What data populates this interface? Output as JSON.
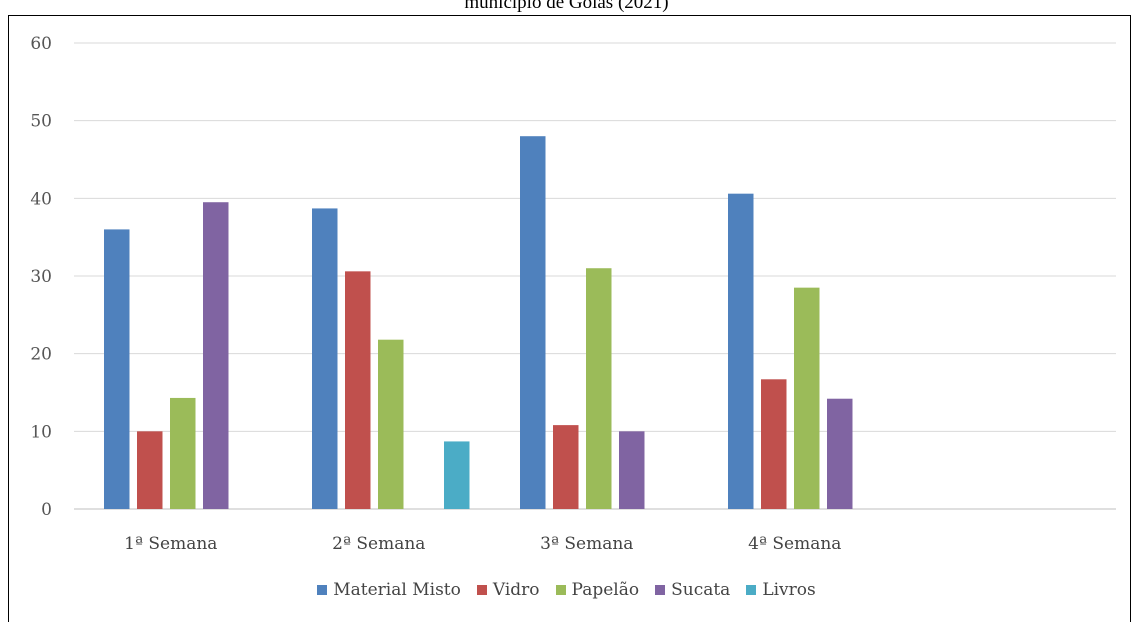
{
  "chart_data": {
    "type": "bar",
    "title": "município de Goiás (2021)",
    "categories": [
      "1ª Semana",
      "2ª Semana",
      "3ª Semana",
      "4ª Semana"
    ],
    "series": [
      {
        "name": "Material Misto",
        "color": "#4f81bd",
        "values": [
          36,
          38.7,
          48,
          40.6
        ]
      },
      {
        "name": "Vidro",
        "color": "#c0504d",
        "values": [
          10,
          30.6,
          10.8,
          16.7
        ]
      },
      {
        "name": "Papelão",
        "color": "#9bbb59",
        "values": [
          14.3,
          21.8,
          31,
          28.5
        ]
      },
      {
        "name": "Sucata",
        "color": "#8064a2",
        "values": [
          39.5,
          null,
          10,
          14.2
        ]
      },
      {
        "name": "Livros",
        "color": "#4bacc6",
        "values": [
          null,
          8.7,
          null,
          null
        ]
      }
    ],
    "ylim": [
      0,
      60
    ],
    "yticks": [
      0,
      10,
      20,
      30,
      40,
      50,
      60
    ],
    "grid": true,
    "legend_position": "bottom"
  }
}
